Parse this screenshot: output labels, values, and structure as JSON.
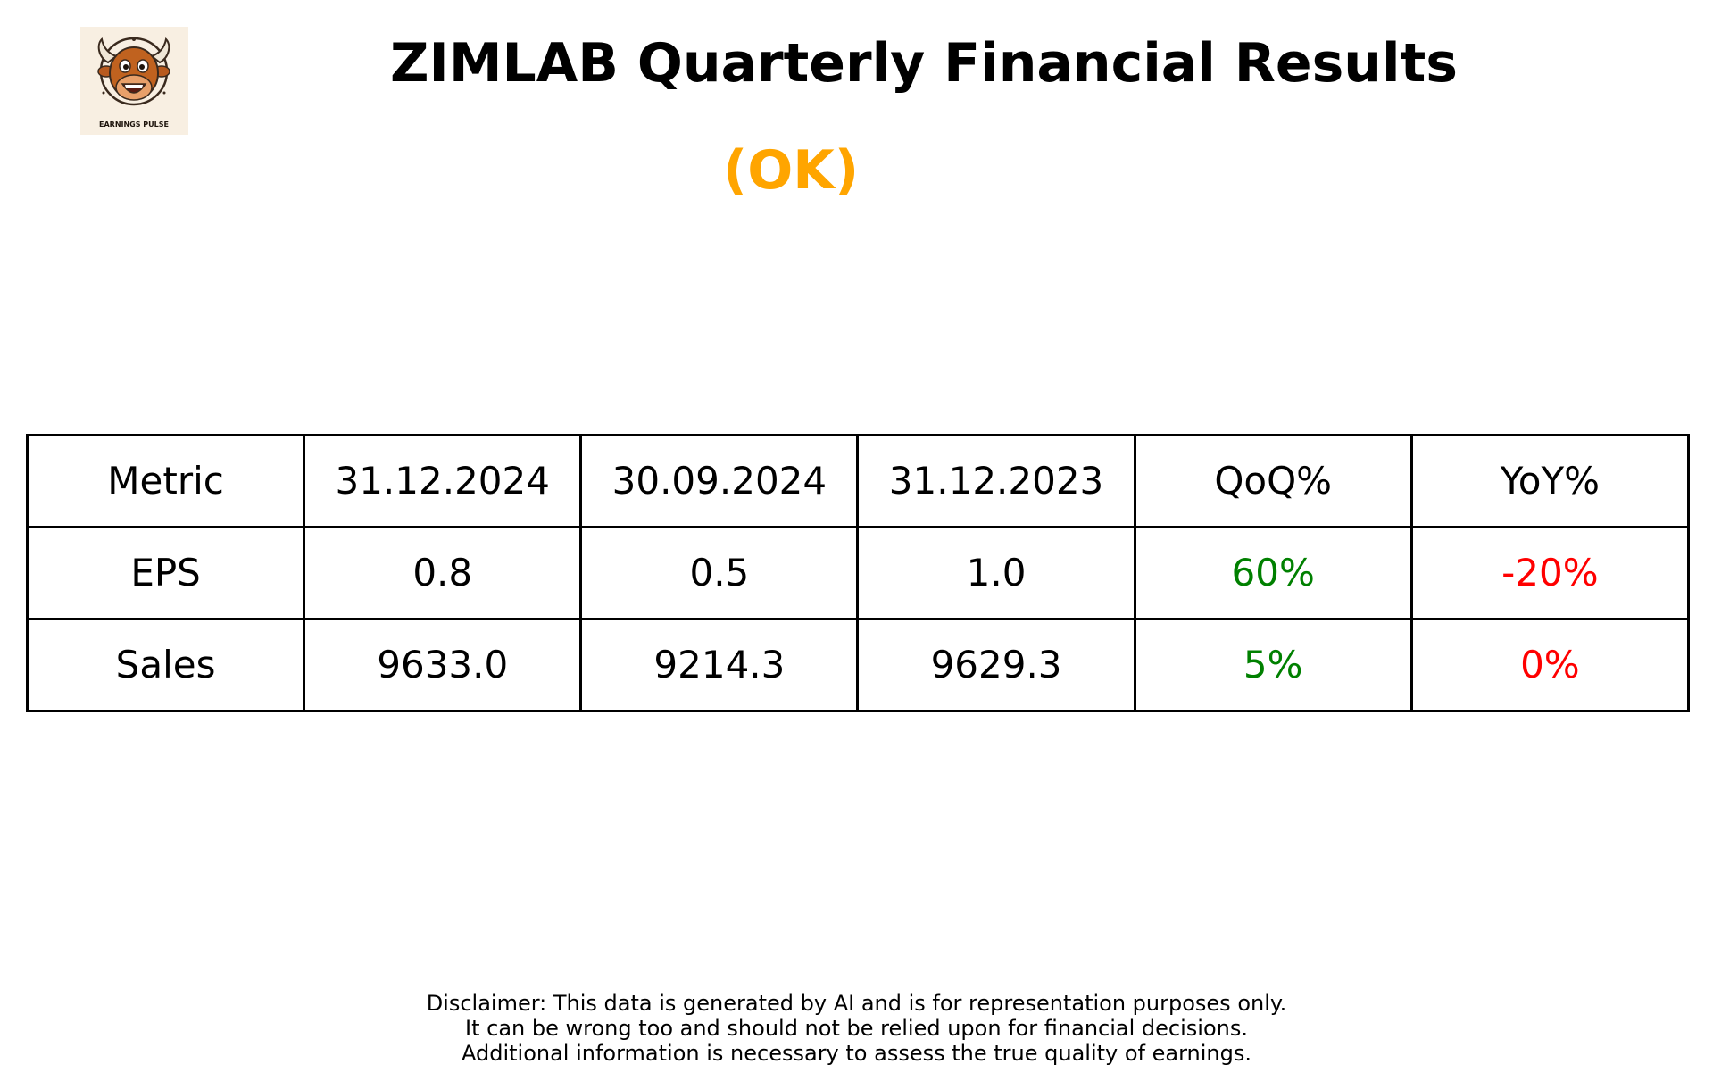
{
  "header": {
    "title": "ZIMLAB Quarterly Financial Results",
    "status": "(OK)",
    "status_color": "#ffa500",
    "logo_text": "EARNINGS PULSE",
    "logo_icon": "bull-face-icon"
  },
  "chart_data": {
    "type": "table",
    "columns": [
      "Metric",
      "31.12.2024",
      "30.09.2024",
      "31.12.2023",
      "QoQ%",
      "YoY%"
    ],
    "rows": [
      {
        "metric": "EPS",
        "values": [
          "0.8",
          "0.5",
          "1.0"
        ],
        "qoq": "60%",
        "yoy": "-20%",
        "qoq_color": "#008000",
        "yoy_color": "#ff0000"
      },
      {
        "metric": "Sales",
        "values": [
          "9633.0",
          "9214.3",
          "9629.3"
        ],
        "qoq": "5%",
        "yoy": "0%",
        "qoq_color": "#008000",
        "yoy_color": "#ff0000"
      }
    ]
  },
  "disclaimer": {
    "lines": [
      "Disclaimer: This data is generated by AI and is for representation purposes only.",
      "It can be wrong too and should not be relied upon for financial decisions.",
      "Additional information is necessary to assess the true quality of earnings."
    ]
  }
}
